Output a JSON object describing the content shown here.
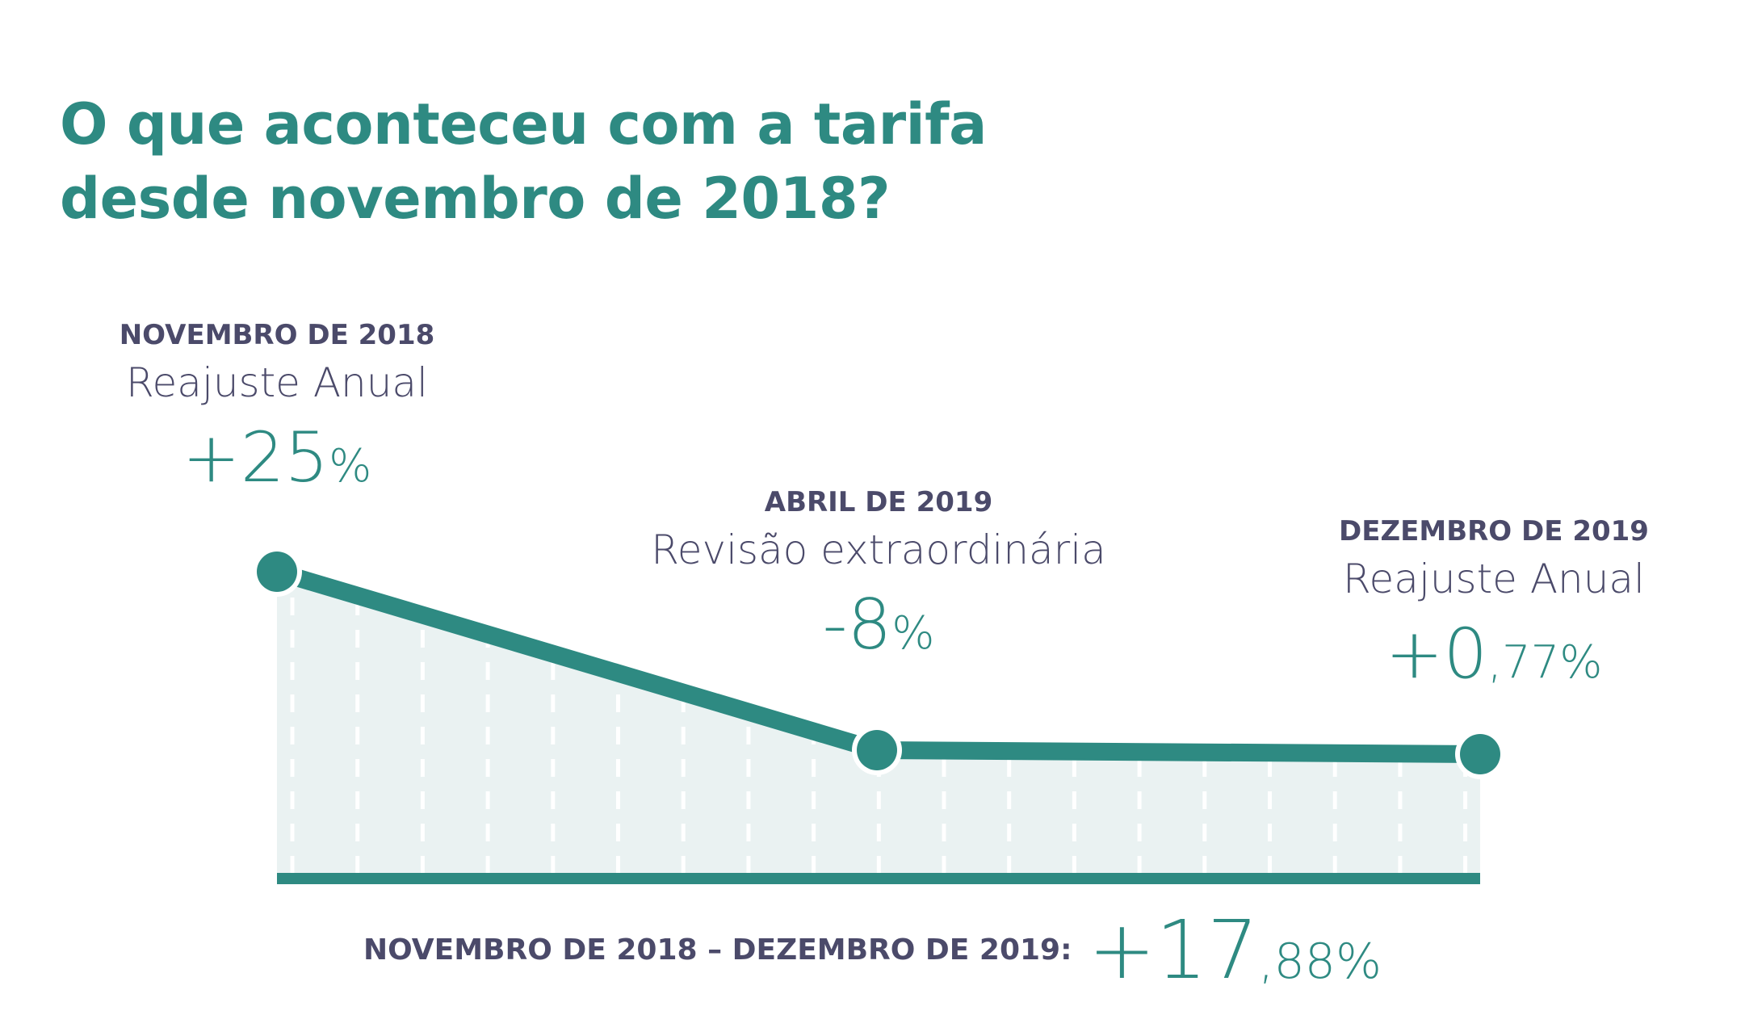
{
  "title": {
    "line1": "O que aconteceu com a tarifa",
    "line2": "desde novembro de 2018?"
  },
  "chart_data": {
    "type": "line",
    "title": "O que aconteceu com a tarifa desde novembro de 2018?",
    "categories": [
      "NOVEMBRO DE 2018",
      "ABRIL DE 2019",
      "DEZEMBRO DE 2019"
    ],
    "series": [
      {
        "values": [
          25,
          -8,
          0.77
        ]
      }
    ],
    "points": [
      {
        "date": "NOVEMBRO DE 2018",
        "event": "Reajuste Anual",
        "value": 25,
        "value_big": "+25",
        "value_small": "%"
      },
      {
        "date": "ABRIL DE 2019",
        "event": "Revisão extraordinária",
        "value": -8,
        "value_big": "-8",
        "value_small": "%"
      },
      {
        "date": "DEZEMBRO DE 2019",
        "event": "Reajuste Anual",
        "value": 0.77,
        "value_big": "+0",
        "value_small": ",77%"
      }
    ],
    "summary": {
      "label": "NOVEMBRO DE 2018 – DEZEMBRO DE 2019:",
      "value": 17.88,
      "value_big": "+17",
      "value_small": ",88%"
    },
    "legend": "none",
    "grid": false,
    "colors": {
      "line": "#2e8a82",
      "fill": "#eaf2f2",
      "text": "#4b4a6a",
      "accent": "#2e8a82"
    }
  }
}
